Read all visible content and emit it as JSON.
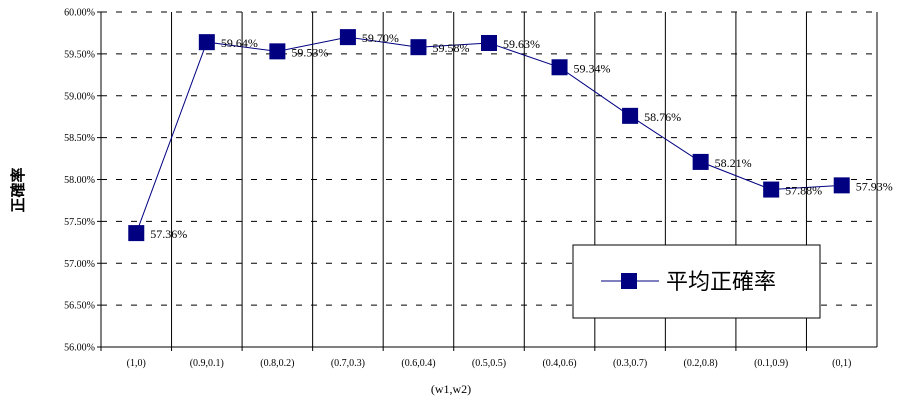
{
  "chart_data": {
    "type": "line",
    "categories": [
      "(1,0)",
      "(0.9,0.1)",
      "(0.8,0.2)",
      "(0.7,0.3)",
      "(0.6,0.4)",
      "(0.5,0.5)",
      "(0.4,0.6)",
      "(0.3,0.7)",
      "(0.2,0.8)",
      "(0.1,0.9)",
      "(0,1)"
    ],
    "series": [
      {
        "name": "平均正確率",
        "values": [
          57.36,
          59.64,
          59.53,
          59.7,
          59.58,
          59.63,
          59.34,
          58.76,
          58.21,
          57.88,
          57.93
        ],
        "labels": [
          "57.36%",
          "59.64%",
          "59.53%",
          "59.70%",
          "59.58%",
          "59.63%",
          "59.34%",
          "58.76%",
          "58.21%",
          "57.88%",
          "57.93%"
        ]
      }
    ],
    "yticks": [
      "56.00%",
      "56.50%",
      "57.00%",
      "57.50%",
      "58.00%",
      "58.50%",
      "59.00%",
      "59.50%",
      "60.00%"
    ],
    "ylim": [
      56.0,
      60.0
    ],
    "ystep": 0.5,
    "xlabel": "(w1,w2)",
    "ylabel": "正確率",
    "grid": "dashed horizontal, solid vertical",
    "legend_position": "lower-right",
    "line_color": "#000080",
    "marker_color": "#000080"
  }
}
